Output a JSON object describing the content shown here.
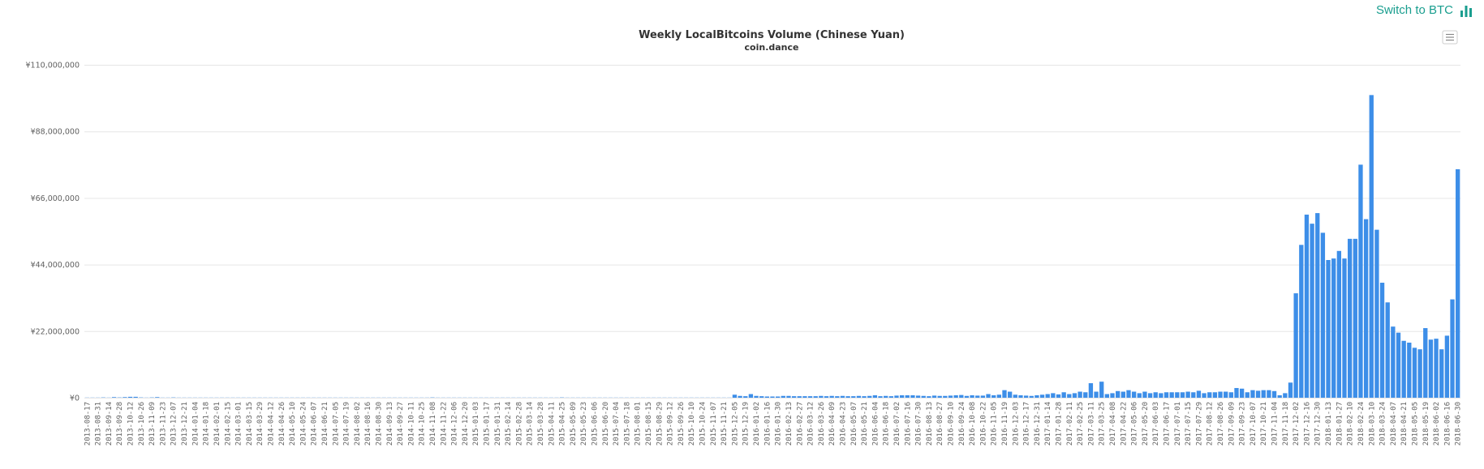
{
  "switch_button": {
    "label": "Switch to BTC",
    "icon": "bar-chart-icon",
    "color": "#1a9e8f"
  },
  "menu_icon": "hamburger-menu-icon",
  "chart_data": {
    "type": "bar",
    "title": "Weekly LocalBitcoins Volume (Chinese Yuan)",
    "subtitle": "coin.dance",
    "bar_color": "#3d8ee8",
    "ylim": [
      0,
      110000000
    ],
    "y_ticks": [
      0,
      22000000,
      44000000,
      66000000,
      88000000,
      110000000
    ],
    "y_tick_labels": [
      "¥0",
      "¥22,000,000",
      "¥44,000,000",
      "¥66,000,000",
      "¥88,000,000",
      "¥110,000,000"
    ],
    "x_start": "2013-08-17",
    "x_step_days": 7,
    "label_every": 2,
    "grid": true,
    "values_millions": [
      0.05,
      0.05,
      0.05,
      0.1,
      0.05,
      0.2,
      0.1,
      0.2,
      0.3,
      0.3,
      0.1,
      0.05,
      0.1,
      0.2,
      0.05,
      0.05,
      0.1,
      0.05,
      0.05,
      0.05,
      0.05,
      0.05,
      0.05,
      0.05,
      0.05,
      0.05,
      0.05,
      0.05,
      0.05,
      0.05,
      0.05,
      0.05,
      0.05,
      0.05,
      0.05,
      0.05,
      0.05,
      0.05,
      0.05,
      0.05,
      0.05,
      0.05,
      0.05,
      0.05,
      0.05,
      0.05,
      0.05,
      0.05,
      0.05,
      0.05,
      0.05,
      0.05,
      0.05,
      0.05,
      0.05,
      0.05,
      0.05,
      0.05,
      0.05,
      0.05,
      0.05,
      0.05,
      0.05,
      0.05,
      0.1,
      0.05,
      0.05,
      0.05,
      0.05,
      0.05,
      0.05,
      0.05,
      0.05,
      0.05,
      0.05,
      0.05,
      0.05,
      0.05,
      0.05,
      0.05,
      0.05,
      0.05,
      0.05,
      0.05,
      0.05,
      0.05,
      0.05,
      0.05,
      0.1,
      0.05,
      0.05,
      0.05,
      0.05,
      0.05,
      0.05,
      0.05,
      0.05,
      0.05,
      0.05,
      0.05,
      0.05,
      0.05,
      0.05,
      0.05,
      0.05,
      0.05,
      0.05,
      0.05,
      0.05,
      0.05,
      0.05,
      0.05,
      0.05,
      0.05,
      0.05,
      0.05,
      0.05,
      0.05,
      0.05,
      0.05,
      1.0,
      0.6,
      0.5,
      1.2,
      0.6,
      0.5,
      0.4,
      0.4,
      0.4,
      0.6,
      0.6,
      0.5,
      0.5,
      0.5,
      0.5,
      0.5,
      0.6,
      0.5,
      0.6,
      0.5,
      0.6,
      0.5,
      0.5,
      0.6,
      0.5,
      0.6,
      0.8,
      0.5,
      0.6,
      0.5,
      0.7,
      0.8,
      0.8,
      0.8,
      0.7,
      0.6,
      0.5,
      0.7,
      0.6,
      0.6,
      0.7,
      0.8,
      0.9,
      0.6,
      0.8,
      0.7,
      0.7,
      1.2,
      0.8,
      1.0,
      2.5,
      2.0,
      1.0,
      0.8,
      0.7,
      0.6,
      0.8,
      1.0,
      1.2,
      1.5,
      1.1,
      1.8,
      1.2,
      1.5,
      2.0,
      1.8,
      4.8,
      2.0,
      5.3,
      1.2,
      1.5,
      2.2,
      2.0,
      2.5,
      2.0,
      1.5,
      2.0,
      1.5,
      1.8,
      1.5,
      1.8,
      1.8,
      1.8,
      1.8,
      2.0,
      1.8,
      2.3,
      1.5,
      1.8,
      1.8,
      2.0,
      2.0,
      1.8,
      3.2,
      3.0,
      1.8,
      2.5,
      2.3,
      2.5,
      2.5,
      2.2,
      0.8,
      1.5,
      5.0,
      34.5,
      50.5,
      60.5,
      57.5,
      61.0,
      54.5,
      45.5,
      46.0,
      48.5,
      46.0,
      52.5,
      52.5,
      77.0,
      59.0,
      100.0,
      55.5,
      38.0,
      31.5,
      23.5,
      21.5,
      18.8,
      18.2,
      16.5,
      16.0,
      23.0,
      19.2,
      19.5,
      16.0,
      20.5,
      32.5,
      75.5
    ]
  }
}
